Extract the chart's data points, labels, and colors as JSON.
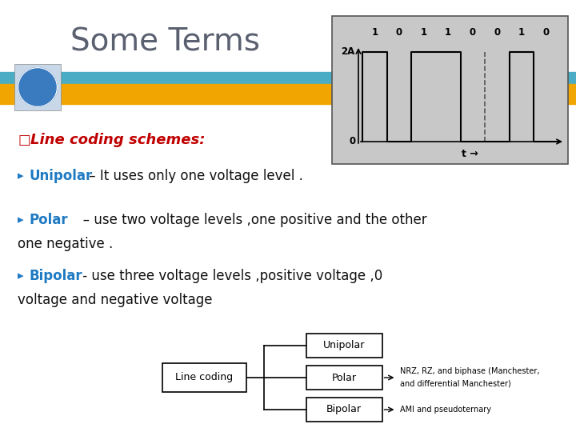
{
  "title": "Some Terms",
  "title_color": "#5a6070",
  "title_fontsize": 28,
  "bg_color": "#ffffff",
  "banner_color1": "#4bacc6",
  "banner_color2": "#f0a500",
  "line_coding_label": "Line coding schemes:",
  "line_coding_color": "#c00000",
  "bullet_color": "#1f7ac2",
  "bullet_symbol": "▸",
  "bullets": [
    {
      "keyword": "Unipolar",
      "dash": " – ",
      "text": "It uses only one voltage level ."
    },
    {
      "keyword": "Polar",
      "dash": "   – ",
      "text": "use two voltage levels ,one positive and the other"
    },
    {
      "keyword": "Bipolar",
      "dash": " - ",
      "text": "use three voltage levels ,positive voltage ,0"
    }
  ],
  "waveform": {
    "bits": [
      1,
      0,
      1,
      1,
      0,
      0,
      1,
      0
    ],
    "bg_color": "#c8c8c8",
    "dashed_indices": [
      4,
      5
    ],
    "amplitude_label": "2A",
    "time_label": "t →"
  },
  "diagram": {
    "nrz_line1": "NRZ, RZ, and biphase (Manchester,",
    "nrz_line2": "and differential Manchester)",
    "ami_label": "AMI and pseudoternary"
  }
}
